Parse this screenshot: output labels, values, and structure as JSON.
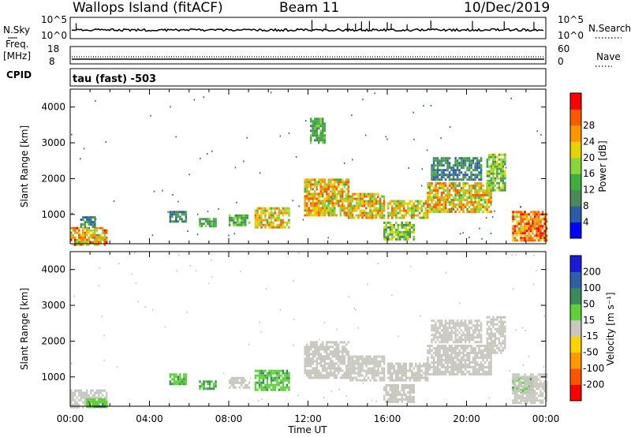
{
  "header": {
    "station": "Wallops Island (fitACF)",
    "beam": "Beam 11",
    "date": "10/Dec/2019"
  },
  "strip": {
    "nsky_label": "N.Sky",
    "nsky_ticks": [
      "10^5",
      "10^0"
    ],
    "nsearch_label": "N.Search",
    "nsearch_ticks": [
      "10^5",
      "10^0"
    ],
    "freq_label": "Freq.",
    "freq_unit": "[MHz]",
    "freq_ticks": [
      "18",
      "8"
    ],
    "nave_label": "Nave",
    "nave_ticks": [
      "60",
      "0"
    ],
    "cpid_label": "CPID",
    "cpid_text": "tau (fast) -503"
  },
  "colors": {
    "power": [
      "#0000ff",
      "#2a5caa",
      "#4a8a5a",
      "#3fae3f",
      "#8ad63a",
      "#e6d200",
      "#ff9600",
      "#ff5a00",
      "#ff0000"
    ],
    "velocity": [
      "#ff0000",
      "#ff5500",
      "#ff9900",
      "#ffd200",
      "#c8c8c0",
      "#5ed03a",
      "#3a8a5a",
      "#2e5fa8",
      "#1a1ad8"
    ]
  },
  "chart_data": [
    {
      "type": "heatmap",
      "panel": "power",
      "xlabel": "",
      "ylabel": "Slant Range [km]",
      "xlim": [
        0,
        24
      ],
      "ylim": [
        180,
        4500
      ],
      "yticks": [
        "1000",
        "2000",
        "3000",
        "4000"
      ],
      "colorbar_label": "Power [dB]",
      "colorbar_ticks": [
        "4",
        "8",
        "12",
        "16",
        "20",
        "24",
        "28"
      ],
      "patches": [
        {
          "t": [
            0,
            1.8
          ],
          "r": [
            180,
            650
          ],
          "v": [
            12,
            28
          ]
        },
        {
          "t": [
            0.5,
            1.2
          ],
          "r": [
            650,
            950
          ],
          "v": [
            4,
            12
          ]
        },
        {
          "t": [
            5,
            5.8
          ],
          "r": [
            800,
            1100
          ],
          "v": [
            4,
            12
          ]
        },
        {
          "t": [
            6.5,
            7.3
          ],
          "r": [
            700,
            900
          ],
          "v": [
            8,
            14
          ]
        },
        {
          "t": [
            8,
            9
          ],
          "r": [
            700,
            1000
          ],
          "v": [
            8,
            16
          ]
        },
        {
          "t": [
            9.3,
            11
          ],
          "r": [
            650,
            1200
          ],
          "v": [
            12,
            26
          ]
        },
        {
          "t": [
            11.8,
            14
          ],
          "r": [
            1000,
            2000
          ],
          "v": [
            12,
            26
          ]
        },
        {
          "t": [
            12.1,
            12.8
          ],
          "r": [
            3000,
            3700
          ],
          "v": [
            8,
            14
          ]
        },
        {
          "t": [
            14,
            15.8
          ],
          "r": [
            900,
            1600
          ],
          "v": [
            12,
            26
          ]
        },
        {
          "t": [
            15.8,
            17.3
          ],
          "r": [
            300,
            800
          ],
          "v": [
            8,
            20
          ]
        },
        {
          "t": [
            16,
            18
          ],
          "r": [
            900,
            1400
          ],
          "v": [
            12,
            24
          ]
        },
        {
          "t": [
            18,
            21.2
          ],
          "r": [
            1100,
            1900
          ],
          "v": [
            12,
            26
          ]
        },
        {
          "t": [
            18.2,
            20.7
          ],
          "r": [
            2000,
            2600
          ],
          "v": [
            4,
            12
          ]
        },
        {
          "t": [
            21,
            21.9
          ],
          "r": [
            1700,
            2700
          ],
          "v": [
            8,
            20
          ]
        },
        {
          "t": [
            22.3,
            24
          ],
          "r": [
            300,
            1100
          ],
          "v": [
            16,
            30
          ]
        }
      ]
    },
    {
      "type": "heatmap",
      "panel": "velocity",
      "xlabel": "Time UT",
      "ylabel": "Slant Range [km]",
      "xlim": [
        0,
        24
      ],
      "ylim": [
        180,
        4500
      ],
      "xticks": [
        "00:00",
        "04:00",
        "08:00",
        "12:00",
        "16:00",
        "20:00",
        "00:00"
      ],
      "yticks": [
        "1000",
        "2000",
        "3000",
        "4000"
      ],
      "colorbar_label": "Velocity [m s⁻¹]",
      "colorbar_ticks": [
        "200",
        "100",
        "50",
        "15",
        "-15",
        "-50",
        "-100",
        "-200"
      ],
      "patches": [
        {
          "t": [
            0,
            1.8
          ],
          "r": [
            180,
            650
          ],
          "v": [
            -10,
            10
          ]
        },
        {
          "t": [
            0.8,
            1.8
          ],
          "r": [
            180,
            400
          ],
          "v": [
            20,
            60
          ]
        },
        {
          "t": [
            5,
            5.8
          ],
          "r": [
            800,
            1100
          ],
          "v": [
            20,
            60
          ]
        },
        {
          "t": [
            6.5,
            7.3
          ],
          "r": [
            700,
            900
          ],
          "v": [
            20,
            70
          ]
        },
        {
          "t": [
            8,
            9
          ],
          "r": [
            700,
            1000
          ],
          "v": [
            -10,
            10
          ]
        },
        {
          "t": [
            9.3,
            11
          ],
          "r": [
            650,
            1200
          ],
          "v": [
            20,
            60
          ]
        },
        {
          "t": [
            11.8,
            14
          ],
          "r": [
            1000,
            2000
          ],
          "v": [
            -10,
            10
          ]
        },
        {
          "t": [
            14,
            15.8
          ],
          "r": [
            900,
            1600
          ],
          "v": [
            -10,
            10
          ]
        },
        {
          "t": [
            15.8,
            17.3
          ],
          "r": [
            300,
            800
          ],
          "v": [
            -10,
            10
          ]
        },
        {
          "t": [
            16,
            18
          ],
          "r": [
            900,
            1400
          ],
          "v": [
            -10,
            10
          ]
        },
        {
          "t": [
            18,
            21.2
          ],
          "r": [
            1100,
            1900
          ],
          "v": [
            -10,
            10
          ]
        },
        {
          "t": [
            18.2,
            20.7
          ],
          "r": [
            2000,
            2600
          ],
          "v": [
            -10,
            10
          ]
        },
        {
          "t": [
            21,
            21.9
          ],
          "r": [
            1700,
            2700
          ],
          "v": [
            -10,
            10
          ]
        },
        {
          "t": [
            22.3,
            23.3
          ],
          "r": [
            600,
            1000
          ],
          "v": [
            20,
            60
          ]
        },
        {
          "t": [
            22.3,
            24
          ],
          "r": [
            300,
            1100
          ],
          "v": [
            -10,
            10
          ]
        }
      ]
    }
  ]
}
